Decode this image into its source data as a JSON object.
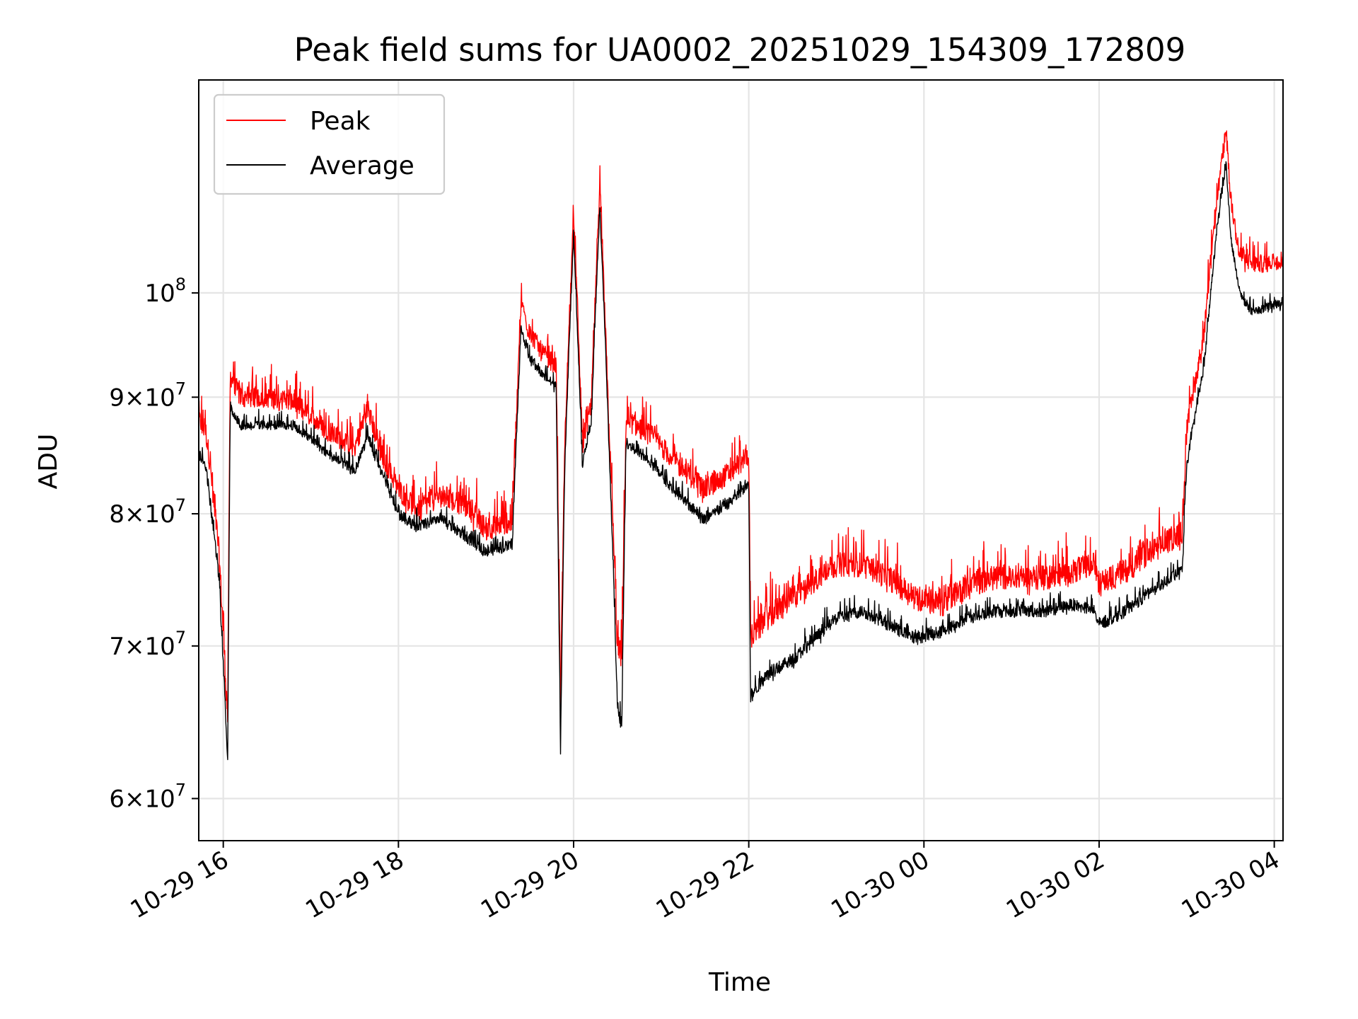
{
  "chart_data": {
    "type": "line",
    "title": "Peak field sums for UA0002_20251029_154309_172809",
    "xlabel": "Time",
    "ylabel": "ADU",
    "yscale": "log",
    "xlim_hours": [
      -0.28,
      12.1
    ],
    "ylim": [
      57500000,
      124000000
    ],
    "grid": true,
    "legend_position": "upper-left",
    "x_unit": "hours since 10-29 16:00",
    "x_ticks": [
      {
        "value": 0,
        "label": "10-29 16"
      },
      {
        "value": 2,
        "label": "10-29 18"
      },
      {
        "value": 4,
        "label": "10-29 20"
      },
      {
        "value": 6,
        "label": "10-29 22"
      },
      {
        "value": 8,
        "label": "10-30 00"
      },
      {
        "value": 10,
        "label": "10-30 02"
      },
      {
        "value": 12,
        "label": "10-30 04"
      }
    ],
    "y_ticks": [
      {
        "value": 60000000,
        "mantissa": "6",
        "base": "10",
        "exp": "7"
      },
      {
        "value": 70000000,
        "mantissa": "7",
        "base": "10",
        "exp": "7"
      },
      {
        "value": 80000000,
        "mantissa": "8",
        "base": "10",
        "exp": "7"
      },
      {
        "value": 90000000,
        "mantissa": "9",
        "base": "10",
        "exp": "7"
      },
      {
        "value": 100000000,
        "mantissa": "",
        "base": "10",
        "exp": "8"
      }
    ],
    "series": [
      {
        "name": "Peak",
        "color": "#ff0000",
        "noise_amplitude": 1900000,
        "x": [
          -0.28,
          -0.2,
          -0.15,
          -0.05,
          0.05,
          0.08,
          0.2,
          0.5,
          0.8,
          1.2,
          1.5,
          1.65,
          1.8,
          2.0,
          2.2,
          2.5,
          2.8,
          3.0,
          3.3,
          3.4,
          3.5,
          3.65,
          3.8,
          3.85,
          3.9,
          4.0,
          4.1,
          4.2,
          4.3,
          4.4,
          4.5,
          4.55,
          4.6,
          4.9,
          5.2,
          5.5,
          5.8,
          6.0,
          6.02,
          6.2,
          6.5,
          7.0,
          7.3,
          7.6,
          7.9,
          8.2,
          8.5,
          8.8,
          9.1,
          9.4,
          9.7,
          9.95,
          10.0,
          10.3,
          10.6,
          10.95,
          11.0,
          11.2,
          11.35,
          11.45,
          11.5,
          11.6,
          11.75,
          11.9,
          12.1
        ],
        "y": [
          88000000,
          87000000,
          84000000,
          77000000,
          65000000,
          92000000,
          90000000,
          90000000,
          89500000,
          87000000,
          85500000,
          89000000,
          85000000,
          82000000,
          80500000,
          81500000,
          80500000,
          78800000,
          79500000,
          99000000,
          96000000,
          94000000,
          93000000,
          66000000,
          86000000,
          108000000,
          86000000,
          89000000,
          111000000,
          88000000,
          70000000,
          69000000,
          88000000,
          86500000,
          84000000,
          82000000,
          83500000,
          85000000,
          70500000,
          72000000,
          73500000,
          76000000,
          76000000,
          75000000,
          73500000,
          73000000,
          74500000,
          75000000,
          75000000,
          75000000,
          75500000,
          76000000,
          74500000,
          75500000,
          77000000,
          78500000,
          87000000,
          96000000,
          110000000,
          118000000,
          110000000,
          104000000,
          103000000,
          103000000,
          103500000
        ]
      },
      {
        "name": "Average",
        "color": "#000000",
        "noise_amplitude": 900000,
        "x": [
          -0.28,
          -0.2,
          -0.15,
          -0.05,
          0.05,
          0.08,
          0.2,
          0.5,
          0.8,
          1.2,
          1.5,
          1.65,
          1.8,
          2.0,
          2.2,
          2.5,
          2.8,
          3.0,
          3.3,
          3.4,
          3.5,
          3.65,
          3.8,
          3.85,
          3.9,
          4.0,
          4.1,
          4.2,
          4.3,
          4.4,
          4.5,
          4.55,
          4.6,
          4.9,
          5.2,
          5.5,
          5.8,
          6.0,
          6.02,
          6.2,
          6.5,
          7.0,
          7.3,
          7.6,
          7.9,
          8.2,
          8.5,
          8.8,
          9.1,
          9.4,
          9.7,
          9.95,
          10.0,
          10.3,
          10.6,
          10.95,
          11.0,
          11.2,
          11.35,
          11.45,
          11.5,
          11.6,
          11.75,
          11.9,
          12.1
        ],
        "y": [
          85000000,
          84000000,
          81000000,
          75000000,
          62500000,
          89000000,
          87500000,
          87500000,
          87500000,
          85000000,
          83500000,
          86500000,
          83500000,
          80000000,
          79000000,
          79500000,
          78000000,
          77000000,
          77500000,
          96500000,
          93500000,
          92000000,
          91000000,
          62500000,
          84000000,
          106000000,
          84000000,
          87500000,
          109000000,
          86500000,
          66000000,
          64500000,
          86000000,
          84000000,
          81500000,
          79500000,
          81000000,
          82500000,
          66500000,
          68000000,
          69000000,
          72000000,
          72500000,
          71500000,
          70500000,
          71000000,
          72000000,
          72500000,
          72500000,
          72500000,
          73000000,
          72500000,
          71500000,
          72500000,
          74000000,
          75500000,
          84000000,
          93000000,
          107000000,
          114000000,
          106000000,
          100000000,
          98000000,
          98500000,
          99000000
        ]
      }
    ]
  }
}
